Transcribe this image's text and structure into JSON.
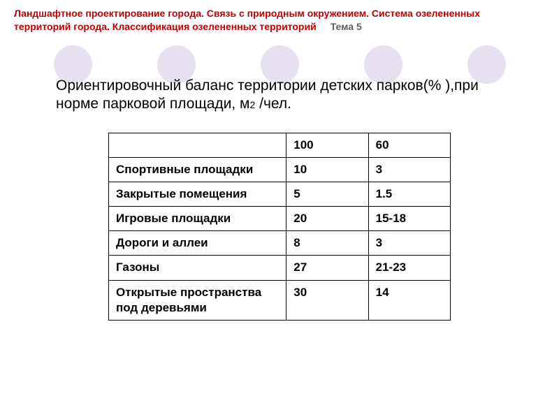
{
  "header": {
    "line1": "Ландшафтное проектирование города. Связь с природным окружением.  Система озелененных",
    "line2": "территорий города. Классификация озелененных территорий",
    "topic": "Тема 5",
    "header_color": "#c00000",
    "topic_color": "#606060",
    "header_fontsize": 14
  },
  "decoration": {
    "circle_count": 5,
    "circle_color": "#e6e0f0",
    "circle_diameter": 55
  },
  "subtitle": {
    "text_before_sub": "Ориентировочный баланс территории детских парков(% ),при норме парковой площади, м",
    "subscript": "2",
    "text_after_sub": " /чел.",
    "fontsize": 21
  },
  "table": {
    "type": "table",
    "col_widths_pct": [
      52,
      24,
      24
    ],
    "border_color": "#000000",
    "cell_fontsize": 17,
    "cell_fontweight": "bold",
    "rows": [
      {
        "label": "",
        "a": "100",
        "b": "60"
      },
      {
        "label": "Спортивные площадки",
        "a": "10",
        "b": "3"
      },
      {
        "label": "Закрытые помещения",
        "a": "5",
        "b": "1.5"
      },
      {
        "label": "Игровые площадки",
        "a": "20",
        "b": "15-18"
      },
      {
        "label": "Дороги и аллеи",
        "a": "8",
        "b": "3"
      },
      {
        "label": "Газоны",
        "a": "27",
        "b": "21-23"
      },
      {
        "label": "Открытые пространства под деревьями",
        "a": "30",
        "b": "14"
      }
    ]
  }
}
